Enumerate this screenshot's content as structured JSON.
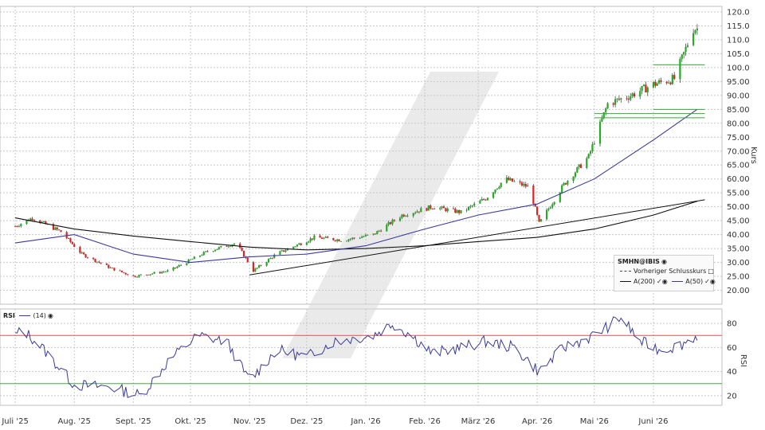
{
  "chart_data": [
    {
      "type": "candlestick",
      "symbol_label": "SMHN@IBIS",
      "ylabel": "Kurs",
      "ylim": [
        15,
        122
      ],
      "yticks": [
        20,
        25,
        30,
        35,
        40,
        45,
        50,
        55,
        60,
        65,
        70,
        75,
        80,
        85,
        90,
        95,
        100,
        105,
        110,
        115,
        120
      ],
      "ytick_labels": [
        "20.00",
        "25.00",
        "30.00",
        "35.00",
        "40.00",
        "45.00",
        "50.00",
        "55.00",
        "60.00",
        "65.00",
        "70.00",
        "75.00",
        "80.00",
        "85.00",
        "90.00",
        "95.00",
        "100.0",
        "105.0",
        "110.0",
        "115.0",
        "120.0"
      ],
      "x_months": [
        "Juli '25",
        "Aug. '25",
        "Sept. '25",
        "Okt. '25",
        "Nov. '25",
        "Dez. '25",
        "Jan. '26",
        "Feb. '26",
        "März '26",
        "Apr. '26",
        "Mai '26",
        "Juni '26"
      ],
      "close_anchors": [
        [
          "2025-07-01",
          43
        ],
        [
          "2025-07-10",
          46
        ],
        [
          "2025-07-25",
          41
        ],
        [
          "2025-08-05",
          33
        ],
        [
          "2025-08-20",
          28
        ],
        [
          "2025-09-01",
          25
        ],
        [
          "2025-09-20",
          27
        ],
        [
          "2025-10-10",
          34
        ],
        [
          "2025-10-25",
          37
        ],
        [
          "2025-11-03",
          27
        ],
        [
          "2025-11-15",
          33
        ],
        [
          "2025-12-05",
          39
        ],
        [
          "2025-12-20",
          38
        ],
        [
          "2026-01-05",
          40
        ],
        [
          "2026-01-20",
          47
        ],
        [
          "2026-02-05",
          50
        ],
        [
          "2026-02-20",
          48
        ],
        [
          "2026-03-05",
          53
        ],
        [
          "2026-03-15",
          60
        ],
        [
          "2026-03-28",
          57
        ],
        [
          "2026-04-02",
          44
        ],
        [
          "2026-04-15",
          58
        ],
        [
          "2026-04-28",
          68
        ],
        [
          "2026-05-08",
          87
        ],
        [
          "2026-05-20",
          90
        ],
        [
          "2026-06-01",
          94
        ],
        [
          "2026-06-12",
          96
        ],
        [
          "2026-06-22",
          114
        ]
      ],
      "sma50_anchors": [
        [
          "2025-07-01",
          37
        ],
        [
          "2025-08-01",
          40
        ],
        [
          "2025-09-01",
          33
        ],
        [
          "2025-10-01",
          30
        ],
        [
          "2025-11-01",
          32
        ],
        [
          "2025-12-01",
          33
        ],
        [
          "2026-01-01",
          36
        ],
        [
          "2026-02-01",
          42
        ],
        [
          "2026-03-01",
          47
        ],
        [
          "2026-04-01",
          51
        ],
        [
          "2026-05-01",
          60
        ],
        [
          "2026-06-01",
          74
        ],
        [
          "2026-06-24",
          85
        ]
      ],
      "sma200_anchors": [
        [
          "2025-07-01",
          46
        ],
        [
          "2025-08-01",
          42
        ],
        [
          "2025-09-01",
          39.5
        ],
        [
          "2025-10-01",
          37.5
        ],
        [
          "2025-11-01",
          35.5
        ],
        [
          "2025-12-01",
          34.5
        ],
        [
          "2026-01-01",
          35
        ],
        [
          "2026-02-01",
          36
        ],
        [
          "2026-03-01",
          37.5
        ],
        [
          "2026-04-01",
          39
        ],
        [
          "2026-05-01",
          42
        ],
        [
          "2026-06-01",
          47
        ],
        [
          "2026-06-24",
          52
        ]
      ],
      "trendlines": [
        {
          "from": [
            "2025-11-01",
            25.5
          ],
          "to": [
            "2026-06-28",
            52.5
          ]
        },
        {
          "from": [
            "2026-05-01",
            82
          ],
          "to": [
            "2026-06-28",
            82
          ]
        },
        {
          "from": [
            "2026-05-01",
            83.5
          ],
          "to": [
            "2026-06-28",
            83.5
          ]
        },
        {
          "from": [
            "2026-06-01",
            85
          ],
          "to": [
            "2026-06-28",
            85
          ]
        },
        {
          "from": [
            "2026-06-01",
            101
          ],
          "to": [
            "2026-06-28",
            101
          ]
        }
      ],
      "colors": {
        "up": "#22aa22",
        "down": "#dd2222",
        "sma50": "#3a3a9a",
        "sma200": "#111111",
        "support": "#33aa33"
      }
    },
    {
      "type": "line",
      "name": "RSI",
      "ylabel": "RSI",
      "ylim": [
        12,
        92
      ],
      "yticks": [
        20,
        40,
        60,
        80
      ],
      "ytick_labels": [
        "20",
        "40",
        "60",
        "80"
      ],
      "overbought": 70,
      "oversold": 30,
      "anchors": [
        [
          "2025-07-01",
          70
        ],
        [
          "2025-07-05",
          75
        ],
        [
          "2025-07-15",
          60
        ],
        [
          "2025-08-01",
          29
        ],
        [
          "2025-08-20",
          27
        ],
        [
          "2025-09-05",
          20
        ],
        [
          "2025-09-20",
          50
        ],
        [
          "2025-10-05",
          70
        ],
        [
          "2025-10-20",
          65
        ],
        [
          "2025-11-01",
          32
        ],
        [
          "2025-11-15",
          58
        ],
        [
          "2025-12-01",
          52
        ],
        [
          "2025-12-15",
          65
        ],
        [
          "2026-01-05",
          70
        ],
        [
          "2026-01-15",
          80
        ],
        [
          "2026-01-25",
          70
        ],
        [
          "2026-02-05",
          55
        ],
        [
          "2026-02-20",
          60
        ],
        [
          "2026-03-05",
          65
        ],
        [
          "2026-03-20",
          60
        ],
        [
          "2026-04-02",
          40
        ],
        [
          "2026-04-15",
          60
        ],
        [
          "2026-05-01",
          70
        ],
        [
          "2026-05-15",
          85
        ],
        [
          "2026-05-25",
          65
        ],
        [
          "2026-06-05",
          58
        ],
        [
          "2026-06-15",
          62
        ],
        [
          "2026-06-24",
          70
        ]
      ],
      "color": "#3a3a9a"
    }
  ],
  "legend": {
    "title": "SMHN@IBIS",
    "prev_close": "Vorheriger Schlusskurs",
    "sma200": "A(200)",
    "sma50": "A(50)"
  },
  "rsi_legend": {
    "title": "RSI",
    "period": "(14)"
  }
}
